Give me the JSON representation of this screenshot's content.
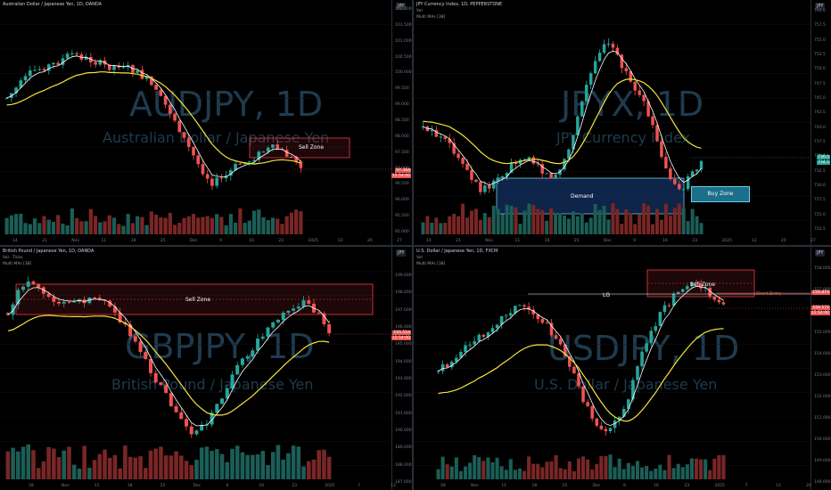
{
  "panes": [
    {
      "title": "Australian Dollar / Japanese Yen, 1D, OANDA",
      "symbol": "AUDJPY, 1D",
      "name": "Australian Dollar / Japanese Yen",
      "currency": "JPY",
      "zone": "Sell Zone",
      "price_ticks": [
        "102.000",
        "101.500",
        "101.000",
        "100.500",
        "100.000",
        "99.500",
        "99.000",
        "98.500",
        "98.000",
        "97.500",
        "97.000",
        "96.500",
        "96.000",
        "95.500",
        "95.000"
      ],
      "last_price": "97.364",
      "last_sub": "15:54:00",
      "x_ticks": [
        "14",
        "21",
        "Nov",
        "11",
        "18",
        "25",
        "Dec",
        "9",
        "16",
        "23",
        "2025",
        "13",
        "20",
        "27"
      ]
    },
    {
      "title": "JPY Currency Index, 1D, PEPPERSTONE",
      "sub1": "Vol",
      "sub2": "Multi MAs [38]",
      "symbol": "JPYX, 1D",
      "name": "JPY Currency Index",
      "currency": "JPY",
      "zone": "Demand",
      "zone2": "Buy Zone",
      "price_ticks": [
        "760.0",
        "757.5",
        "755.0",
        "752.5",
        "750.0",
        "747.5",
        "745.0",
        "742.5",
        "740.0",
        "737.5",
        "735.0",
        "732.5",
        "730.0",
        "727.5",
        "725.0",
        "722.5"
      ],
      "last_price": "736.5",
      "last_sub": "734.5",
      "x_ticks": [
        "14",
        "21",
        "Nov",
        "11",
        "18",
        "25",
        "Dec",
        "9",
        "16",
        "23",
        "2025",
        "13",
        "20",
        "27"
      ]
    },
    {
      "title": "British Pound / Japanese Yen, 1D, OANDA",
      "sub1": "Vol · Ticks",
      "sub2": "Multi MAs [38]",
      "symbol": "GBPJPY, 1D",
      "name": "British Pound / Japanese Yen",
      "currency": "JPY",
      "zone": "Sell Zone",
      "price_ticks": [
        "199.000",
        "198.000",
        "197.000",
        "196.000",
        "195.000",
        "194.000",
        "193.000",
        "192.000",
        "191.000",
        "190.000",
        "189.000",
        "188.000",
        "187.000"
      ],
      "last_price": "195.554",
      "last_sub": "15:54:00",
      "x_ticks": [
        "28",
        "Nov",
        "11",
        "18",
        "25",
        "Dec",
        "9",
        "16",
        "23",
        "2025",
        "7",
        "13"
      ]
    },
    {
      "title": "U.S. Dollar / Japanese Yen, 1D, FXCM",
      "sub1": "Vol",
      "sub2": "Multi MAs [38]",
      "symbol": "USDJPY, 1D",
      "name": "U.S. Dollar / Japanese Yen",
      "currency": "JPY",
      "zone": "Sell Zone",
      "lg": "LG",
      "short_entry": "Short Entry",
      "price_ticks": [
        "158.000",
        "157.000",
        "156.000",
        "155.000",
        "154.000",
        "153.000",
        "152.000",
        "151.000",
        "150.000",
        "149.000",
        "148.000"
      ],
      "last_price": "156.571",
      "last_sub": "15:54:00",
      "entry_price": "156.874",
      "x_ticks": [
        "28",
        "Nov",
        "11",
        "18",
        "25",
        "Dec",
        "9",
        "16",
        "23",
        "2025",
        "7",
        "13",
        "20"
      ]
    }
  ],
  "colors": {
    "up": "#26a69a",
    "down": "#ef5350",
    "ma_yellow": "#f5e43a",
    "ma_white": "#ffffff",
    "zone": "#f23645"
  }
}
